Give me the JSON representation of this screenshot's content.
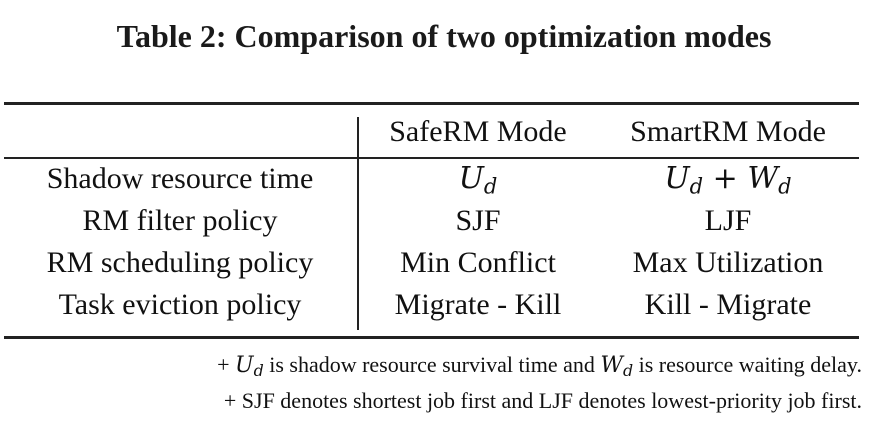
{
  "caption": "Table 2: Comparison of two optimization modes",
  "table": {
    "columns": [
      "",
      "SafeRM Mode",
      "SmartRM Mode"
    ],
    "rows": [
      {
        "label": "Shadow resource time",
        "safe": {
          "var": "U",
          "sub": "d"
        },
        "smart": {
          "var1": "U",
          "sub1": "d",
          "op": " + ",
          "var2": "W",
          "sub2": "d"
        }
      },
      {
        "label": "RM filter policy",
        "safe": "SJF",
        "smart": "LJF"
      },
      {
        "label": "RM scheduling policy",
        "safe": "Min Conflict",
        "smart": "Max Utilization"
      },
      {
        "label": "Task eviction policy",
        "safe": "Migrate - Kill",
        "smart": "Kill - Migrate"
      }
    ]
  },
  "notes": [
    {
      "prefix": "+ ",
      "var1": "U",
      "sub1": "d",
      "text1": " is shadow resource survival time and ",
      "var2": "W",
      "sub2": "d",
      "text2": " is resource waiting delay."
    },
    {
      "text": "+ SJF denotes shortest job first and LJF denotes lowest-priority job first."
    }
  ]
}
